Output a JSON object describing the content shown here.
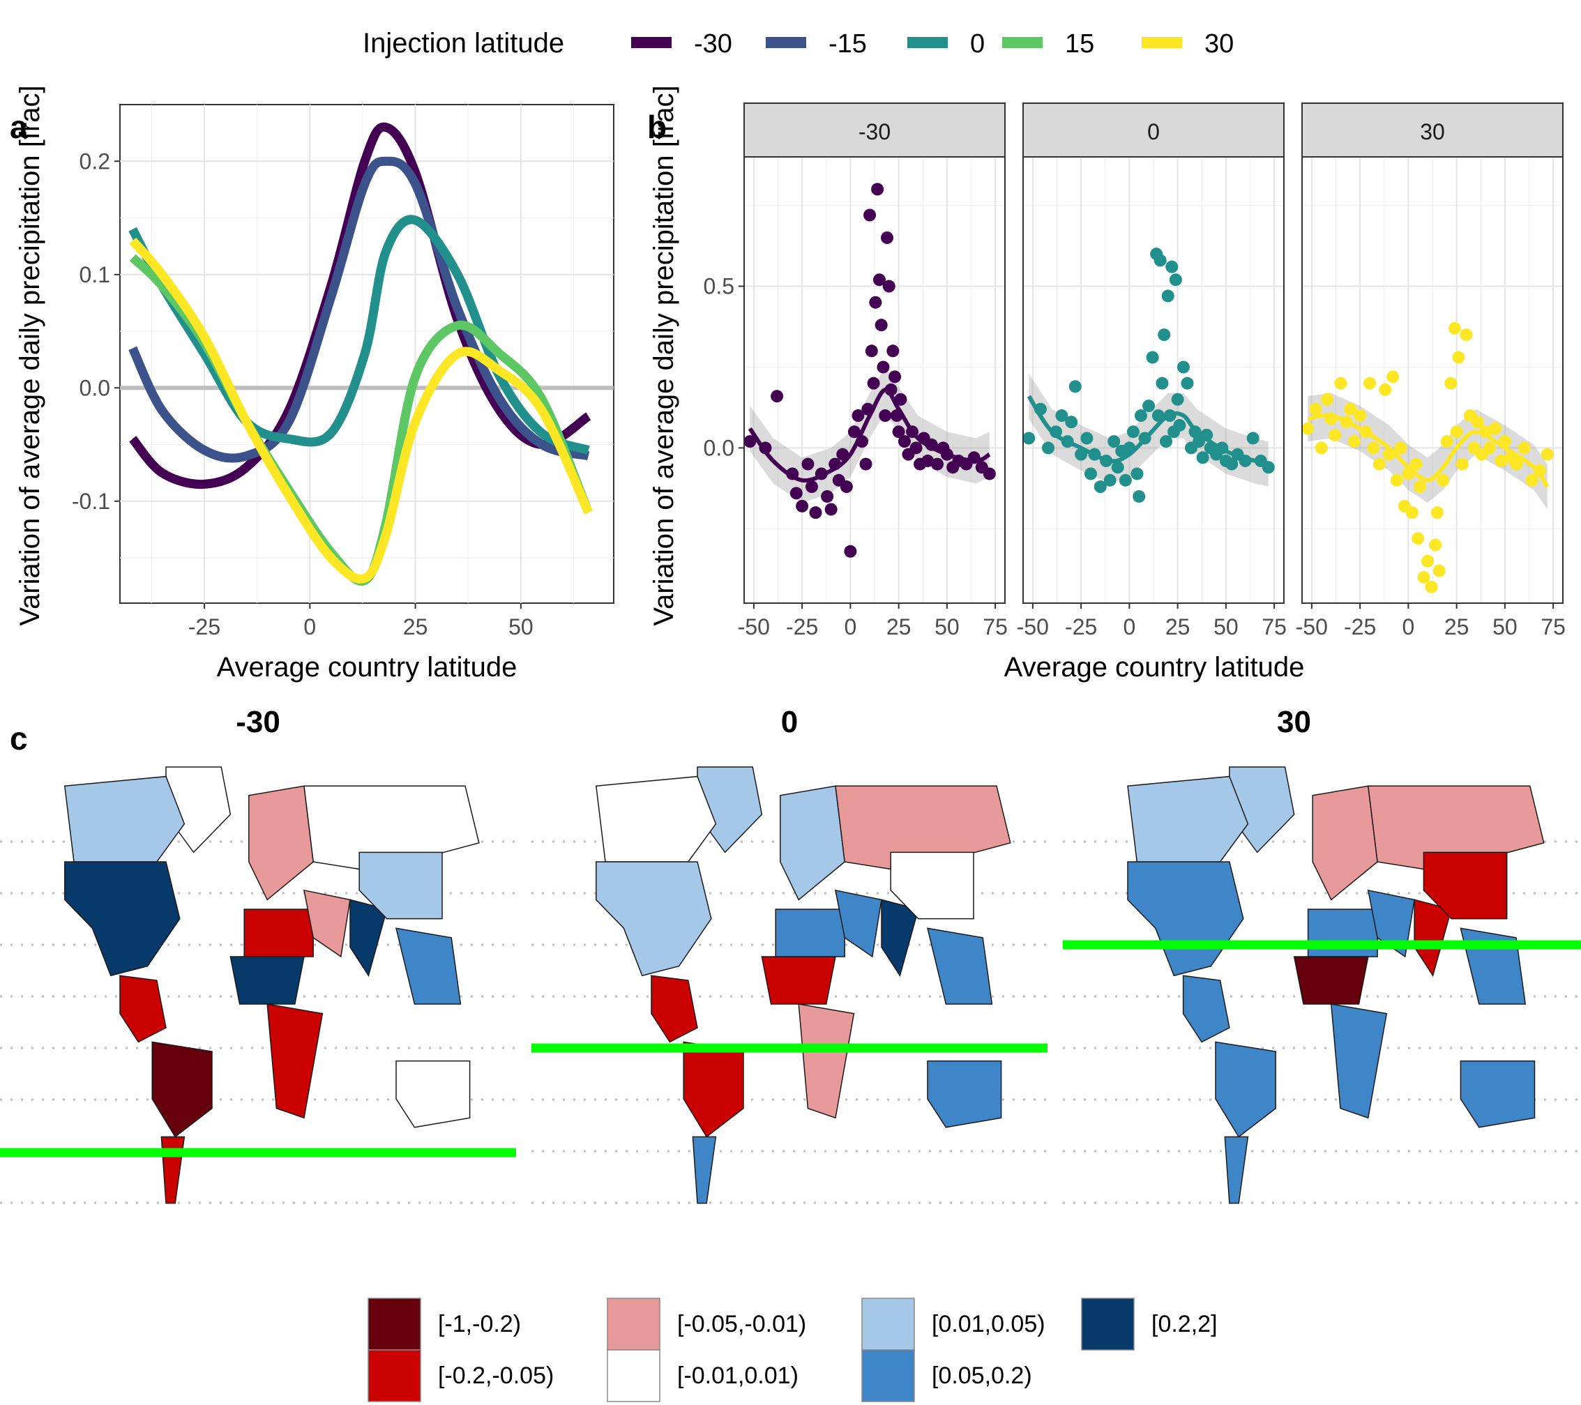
{
  "legend": {
    "title": "Injection latitude",
    "items": [
      {
        "label": "-30",
        "color": "#440154"
      },
      {
        "label": "-15",
        "color": "#3B528B"
      },
      {
        "label": "0",
        "color": "#21908C"
      },
      {
        "label": "15",
        "color": "#5DC863"
      },
      {
        "label": "30",
        "color": "#FDE725"
      }
    ]
  },
  "panel_labels": {
    "a": "a",
    "b": "b",
    "c": "c"
  },
  "panel_a": {
    "xlabel": "Average country latitude",
    "ylabel": "Variation of average daily precipitation [frac]",
    "xticks": [
      "-25",
      "0",
      "25",
      "50"
    ],
    "yticks": [
      "-0.1",
      "0.0",
      "0.1",
      "0.2"
    ]
  },
  "panel_b": {
    "xlabel": "Average country latitude",
    "ylabel": "Variation of average daily precipitation [frac]",
    "facets": [
      "-30",
      "0",
      "30"
    ],
    "xticks": [
      "-50",
      "-25",
      "0",
      "25",
      "50",
      "75"
    ],
    "yticks": [
      "0.0",
      "0.5"
    ]
  },
  "panel_c": {
    "titles": [
      "-30",
      "0",
      "30"
    ],
    "injection_line_color": "#00FF00",
    "legend": [
      {
        "label": "[-1,-0.2)",
        "color": "#67000D"
      },
      {
        "label": "[-0.2,-0.05)",
        "color": "#CB0000"
      },
      {
        "label": "[-0.05,-0.01)",
        "color": "#E89A9A"
      },
      {
        "label": "[-0.01,0.01)",
        "color": "#FFFFFF"
      },
      {
        "label": "[0.01,0.05)",
        "color": "#A6C8E8"
      },
      {
        "label": "[0.05,0.2)",
        "color": "#3F86C8"
      },
      {
        "label": "[0.2,2]",
        "color": "#08396B"
      }
    ]
  },
  "chart_data": [
    {
      "type": "line",
      "panel": "a",
      "xlabel": "Average country latitude",
      "ylabel": "Variation of average daily precipitation [frac]",
      "xlim": [
        -45,
        72
      ],
      "ylim": [
        -0.19,
        0.25
      ],
      "legend_title": "Injection latitude",
      "x": [
        -42,
        -35,
        -25,
        -15,
        -5,
        5,
        13,
        18,
        25,
        35,
        45,
        55,
        66
      ],
      "series": [
        {
          "name": "-30",
          "color": "#440154",
          "values": [
            -0.045,
            -0.075,
            -0.085,
            -0.07,
            -0.02,
            0.09,
            0.2,
            0.23,
            0.19,
            0.06,
            -0.02,
            -0.05,
            -0.025
          ]
        },
        {
          "name": "-15",
          "color": "#3B528B",
          "values": [
            0.035,
            -0.02,
            -0.055,
            -0.06,
            -0.03,
            0.08,
            0.18,
            0.2,
            0.18,
            0.07,
            -0.01,
            -0.05,
            -0.06
          ]
        },
        {
          "name": "0",
          "color": "#21908C",
          "values": [
            0.14,
            0.09,
            0.03,
            -0.03,
            -0.045,
            -0.04,
            0.03,
            0.12,
            0.148,
            0.1,
            0.01,
            -0.04,
            -0.055
          ]
        },
        {
          "name": "15",
          "color": "#5DC863",
          "values": [
            0.115,
            0.09,
            0.04,
            -0.03,
            -0.09,
            -0.145,
            -0.17,
            -0.12,
            0.01,
            0.055,
            0.03,
            -0.01,
            -0.11
          ]
        },
        {
          "name": "30",
          "color": "#FDE725",
          "values": [
            0.13,
            0.1,
            0.045,
            -0.03,
            -0.095,
            -0.15,
            -0.168,
            -0.13,
            -0.03,
            0.03,
            0.015,
            -0.02,
            -0.11
          ]
        }
      ],
      "hline": 0
    },
    {
      "type": "scatter",
      "panel": "b",
      "xlabel": "Average country latitude",
      "ylabel": "Variation of average daily precipitation [frac]",
      "xlim": [
        -55,
        80
      ],
      "ylim": [
        -0.48,
        0.9
      ],
      "facets": [
        {
          "name": "-30",
          "color": "#440154",
          "points": [
            [
              -52,
              0.02
            ],
            [
              -44,
              0.0
            ],
            [
              -38,
              0.16
            ],
            [
              -30,
              -0.08
            ],
            [
              -28,
              -0.14
            ],
            [
              -25,
              -0.18
            ],
            [
              -22,
              -0.05
            ],
            [
              -20,
              -0.12
            ],
            [
              -18,
              -0.2
            ],
            [
              -15,
              -0.08
            ],
            [
              -12,
              -0.15
            ],
            [
              -10,
              -0.19
            ],
            [
              -8,
              -0.05
            ],
            [
              -6,
              -0.1
            ],
            [
              -4,
              -0.02
            ],
            [
              -2,
              -0.12
            ],
            [
              0,
              -0.32
            ],
            [
              2,
              0.05
            ],
            [
              4,
              0.1
            ],
            [
              6,
              0.02
            ],
            [
              8,
              -0.05
            ],
            [
              9,
              0.12
            ],
            [
              10,
              0.72
            ],
            [
              11,
              0.3
            ],
            [
              12,
              0.2
            ],
            [
              13,
              0.45
            ],
            [
              14,
              0.8
            ],
            [
              15,
              0.52
            ],
            [
              16,
              0.38
            ],
            [
              17,
              0.25
            ],
            [
              18,
              0.1
            ],
            [
              19,
              0.65
            ],
            [
              20,
              0.5
            ],
            [
              21,
              0.18
            ],
            [
              22,
              0.3
            ],
            [
              23,
              0.22
            ],
            [
              24,
              0.1
            ],
            [
              25,
              0.05
            ],
            [
              26,
              0.15
            ],
            [
              28,
              0.02
            ],
            [
              30,
              -0.02
            ],
            [
              32,
              0.05
            ],
            [
              34,
              0.0
            ],
            [
              36,
              -0.05
            ],
            [
              38,
              0.03
            ],
            [
              40,
              -0.04
            ],
            [
              42,
              0.01
            ],
            [
              45,
              -0.05
            ],
            [
              48,
              0.0
            ],
            [
              50,
              -0.02
            ],
            [
              53,
              -0.06
            ],
            [
              56,
              -0.04
            ],
            [
              60,
              -0.05
            ],
            [
              64,
              -0.03
            ],
            [
              68,
              -0.06
            ],
            [
              72,
              -0.08
            ]
          ],
          "smooth": [
            [
              -52,
              0.06
            ],
            [
              -40,
              -0.04
            ],
            [
              -25,
              -0.1
            ],
            [
              -10,
              -0.07
            ],
            [
              0,
              -0.02
            ],
            [
              10,
              0.1
            ],
            [
              18,
              0.18
            ],
            [
              25,
              0.12
            ],
            [
              35,
              0.03
            ],
            [
              50,
              -0.02
            ],
            [
              65,
              -0.04
            ],
            [
              72,
              -0.02
            ]
          ]
        },
        {
          "name": "0",
          "color": "#21908C",
          "points": [
            [
              -52,
              0.03
            ],
            [
              -46,
              0.12
            ],
            [
              -42,
              0.0
            ],
            [
              -38,
              0.05
            ],
            [
              -35,
              0.1
            ],
            [
              -32,
              0.02
            ],
            [
              -30,
              0.08
            ],
            [
              -28,
              0.19
            ],
            [
              -25,
              -0.02
            ],
            [
              -22,
              0.03
            ],
            [
              -20,
              -0.08
            ],
            [
              -18,
              -0.02
            ],
            [
              -15,
              -0.12
            ],
            [
              -12,
              -0.04
            ],
            [
              -10,
              -0.1
            ],
            [
              -8,
              0.02
            ],
            [
              -6,
              -0.06
            ],
            [
              -4,
              -0.01
            ],
            [
              -2,
              -0.1
            ],
            [
              0,
              0.0
            ],
            [
              2,
              0.05
            ],
            [
              4,
              -0.08
            ],
            [
              5,
              -0.15
            ],
            [
              6,
              0.1
            ],
            [
              8,
              0.03
            ],
            [
              10,
              0.13
            ],
            [
              12,
              0.28
            ],
            [
              14,
              0.6
            ],
            [
              15,
              0.1
            ],
            [
              16,
              0.58
            ],
            [
              17,
              0.2
            ],
            [
              18,
              0.35
            ],
            [
              19,
              0.02
            ],
            [
              20,
              0.47
            ],
            [
              21,
              0.1
            ],
            [
              22,
              0.56
            ],
            [
              23,
              0.05
            ],
            [
              24,
              0.52
            ],
            [
              25,
              0.15
            ],
            [
              26,
              0.07
            ],
            [
              28,
              0.25
            ],
            [
              30,
              0.2
            ],
            [
              32,
              0.0
            ],
            [
              34,
              0.05
            ],
            [
              36,
              0.02
            ],
            [
              38,
              -0.03
            ],
            [
              40,
              0.04
            ],
            [
              42,
              0.0
            ],
            [
              45,
              -0.02
            ],
            [
              48,
              0.0
            ],
            [
              50,
              -0.04
            ],
            [
              53,
              -0.05
            ],
            [
              56,
              -0.02
            ],
            [
              60,
              -0.04
            ],
            [
              64,
              0.03
            ],
            [
              68,
              -0.04
            ],
            [
              72,
              -0.06
            ]
          ],
          "smooth": [
            [
              -52,
              0.16
            ],
            [
              -40,
              0.05
            ],
            [
              -25,
              0.0
            ],
            [
              -10,
              -0.04
            ],
            [
              0,
              -0.02
            ],
            [
              10,
              0.04
            ],
            [
              20,
              0.1
            ],
            [
              28,
              0.1
            ],
            [
              35,
              0.05
            ],
            [
              50,
              -0.01
            ],
            [
              65,
              -0.04
            ],
            [
              72,
              -0.05
            ]
          ]
        },
        {
          "name": "30",
          "color": "#FDE725",
          "points": [
            [
              -52,
              0.06
            ],
            [
              -48,
              0.12
            ],
            [
              -45,
              0.0
            ],
            [
              -42,
              0.15
            ],
            [
              -40,
              0.09
            ],
            [
              -38,
              0.04
            ],
            [
              -35,
              0.2
            ],
            [
              -32,
              0.08
            ],
            [
              -30,
              0.12
            ],
            [
              -28,
              0.02
            ],
            [
              -25,
              0.1
            ],
            [
              -22,
              0.05
            ],
            [
              -20,
              0.2
            ],
            [
              -18,
              0.0
            ],
            [
              -15,
              -0.05
            ],
            [
              -12,
              0.18
            ],
            [
              -10,
              -0.02
            ],
            [
              -8,
              0.22
            ],
            [
              -6,
              -0.1
            ],
            [
              -4,
              0.0
            ],
            [
              -2,
              -0.18
            ],
            [
              0,
              -0.08
            ],
            [
              2,
              -0.2
            ],
            [
              4,
              -0.05
            ],
            [
              5,
              -0.28
            ],
            [
              6,
              -0.12
            ],
            [
              8,
              -0.4
            ],
            [
              10,
              -0.35
            ],
            [
              12,
              -0.43
            ],
            [
              14,
              -0.3
            ],
            [
              15,
              -0.2
            ],
            [
              16,
              -0.38
            ],
            [
              18,
              -0.1
            ],
            [
              20,
              0.02
            ],
            [
              22,
              0.2
            ],
            [
              24,
              0.37
            ],
            [
              25,
              0.05
            ],
            [
              26,
              0.28
            ],
            [
              28,
              -0.05
            ],
            [
              30,
              0.35
            ],
            [
              32,
              0.1
            ],
            [
              34,
              0.0
            ],
            [
              36,
              0.08
            ],
            [
              38,
              -0.02
            ],
            [
              40,
              0.05
            ],
            [
              42,
              0.0
            ],
            [
              45,
              0.06
            ],
            [
              48,
              -0.04
            ],
            [
              50,
              0.02
            ],
            [
              53,
              -0.03
            ],
            [
              56,
              -0.05
            ],
            [
              60,
              0.0
            ],
            [
              64,
              -0.1
            ],
            [
              68,
              -0.07
            ],
            [
              72,
              -0.02
            ]
          ],
          "smooth": [
            [
              -52,
              0.09
            ],
            [
              -40,
              0.1
            ],
            [
              -25,
              0.06
            ],
            [
              -10,
              0.0
            ],
            [
              0,
              -0.06
            ],
            [
              10,
              -0.1
            ],
            [
              18,
              -0.06
            ],
            [
              25,
              0.0
            ],
            [
              35,
              0.05
            ],
            [
              50,
              0.0
            ],
            [
              65,
              -0.06
            ],
            [
              72,
              -0.12
            ]
          ]
        }
      ]
    }
  ]
}
